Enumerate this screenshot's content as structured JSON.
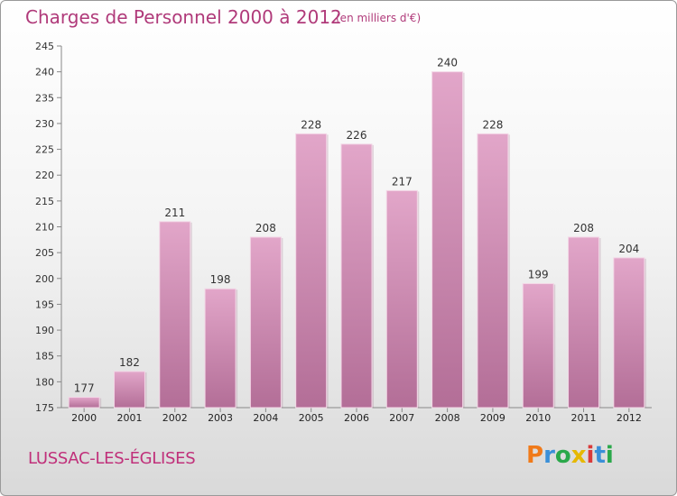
{
  "header": {
    "title": "Charges de Personnel 2000 à 2012",
    "unit": "(en milliers d'€)"
  },
  "footer": {
    "place": "LUSSAC-LES-ÉGLISES",
    "logo": "Proxiti"
  },
  "colors": {
    "bar_light": "#e2a6c9",
    "bar_dark": "#b36e97",
    "title": "#b03a7a",
    "logo_letters": [
      "#f07a1a",
      "#3a8fd8",
      "#2aa84a",
      "#e6b800",
      "#d93a3a",
      "#3a8fd8",
      "#2aa84a"
    ]
  },
  "chart_data": {
    "type": "bar",
    "title": "Charges de Personnel 2000 à 2012",
    "subtitle": "(en milliers d'€)",
    "categories": [
      "2000",
      "2001",
      "2002",
      "2003",
      "2004",
      "2005",
      "2006",
      "2007",
      "2008",
      "2009",
      "2010",
      "2011",
      "2012"
    ],
    "values": [
      177,
      182,
      211,
      198,
      208,
      228,
      226,
      217,
      240,
      228,
      199,
      208,
      204
    ],
    "ylim": [
      175,
      245
    ],
    "yticks": [
      175,
      180,
      185,
      190,
      195,
      200,
      205,
      210,
      215,
      220,
      225,
      230,
      235,
      240,
      245
    ],
    "grid": false,
    "data_labels": true
  }
}
